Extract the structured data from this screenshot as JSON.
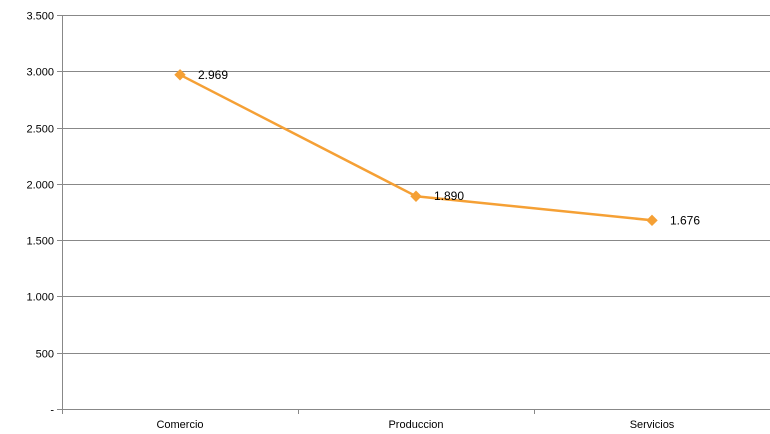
{
  "chart_data": {
    "type": "line",
    "categories": [
      "Comercio",
      "Produccion",
      "Servicios"
    ],
    "series": [
      {
        "values": [
          2969,
          1890,
          1676
        ],
        "data_labels": [
          "2.969",
          "1.890",
          "1.676"
        ],
        "color": "#f5a035",
        "marker": "diamond"
      }
    ],
    "yticks": [
      {
        "value": 0,
        "label": "-"
      },
      {
        "value": 500,
        "label": "500"
      },
      {
        "value": 1000,
        "label": "1.000"
      },
      {
        "value": 1500,
        "label": "1.500"
      },
      {
        "value": 2000,
        "label": "2.000"
      },
      {
        "value": 2500,
        "label": "2.500"
      },
      {
        "value": 3000,
        "label": "3.000"
      },
      {
        "value": 3500,
        "label": "3.500"
      }
    ],
    "ylim": [
      0,
      3500
    ],
    "grid": true,
    "legend": "none",
    "gridline_color": "#888888",
    "axis_color": "#888888"
  }
}
